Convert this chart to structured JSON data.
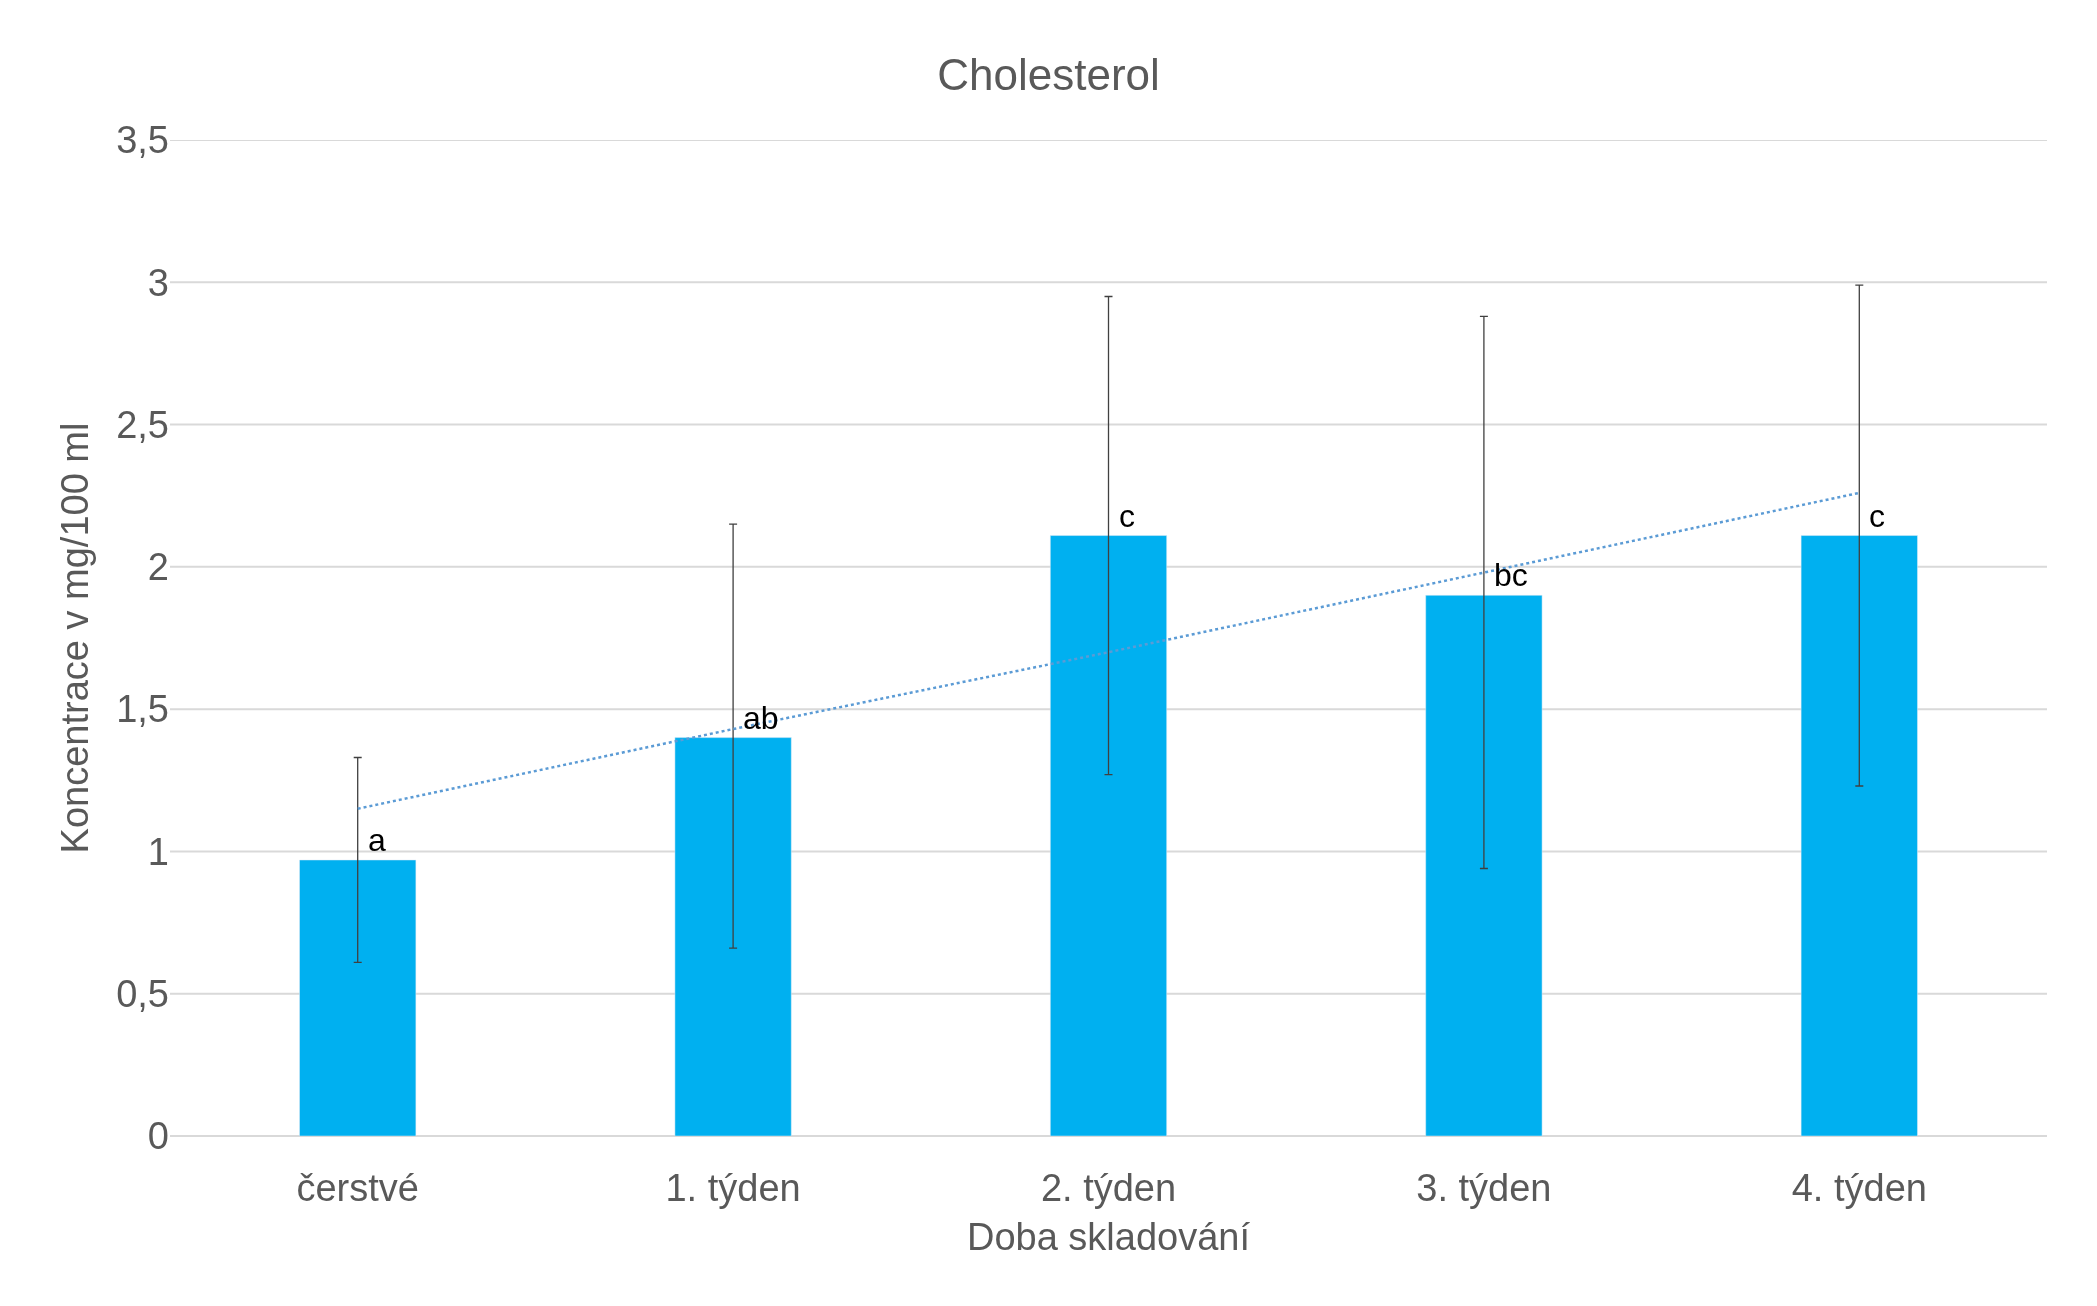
{
  "chart_data": {
    "type": "bar",
    "title": "Cholesterol",
    "xlabel": "Doba skladování",
    "ylabel": "Koncentrace v mg/100 ml",
    "categories": [
      "čerstvé",
      "1. týden",
      "2. týden",
      "3. týden",
      "4. týden"
    ],
    "series": [
      {
        "color": "#00b0f0",
        "values": [
          0.97,
          1.4,
          2.11,
          1.9,
          2.11
        ],
        "errors": [
          [
            0.61,
            1.33
          ],
          [
            0.66,
            2.15
          ],
          [
            1.27,
            2.95
          ],
          [
            0.94,
            2.88
          ],
          [
            1.23,
            2.99
          ]
        ]
      },
      {
        "type": "line",
        "color": "#5b9bd5",
        "line_style": "dotted",
        "values": [
          1.15,
          1.43,
          1.7,
          1.98,
          2.26
        ]
      }
    ],
    "annotations": [
      {
        "text": "a",
        "x": "čerstvé",
        "y": 0.97
      },
      {
        "text": "ab",
        "x": "1. týden",
        "y": 1.4
      },
      {
        "text": "c",
        "x": "2. týden",
        "y": 2.11
      },
      {
        "text": "bc",
        "x": "3. týden",
        "y": 1.9
      },
      {
        "text": "c",
        "x": "4. týden",
        "y": 2.11
      }
    ],
    "ylim": [
      0,
      3.5
    ],
    "yticks": [
      {
        "value": 0,
        "label": "0"
      },
      {
        "value": 0.5,
        "label": "0,5"
      },
      {
        "value": 1,
        "label": "1"
      },
      {
        "value": 1.5,
        "label": "1,5"
      },
      {
        "value": 2,
        "label": "2"
      },
      {
        "value": 2.5,
        "label": "2,5"
      },
      {
        "value": 3,
        "label": "3"
      },
      {
        "value": 3.5,
        "label": "3,5"
      }
    ],
    "grid": "y"
  }
}
